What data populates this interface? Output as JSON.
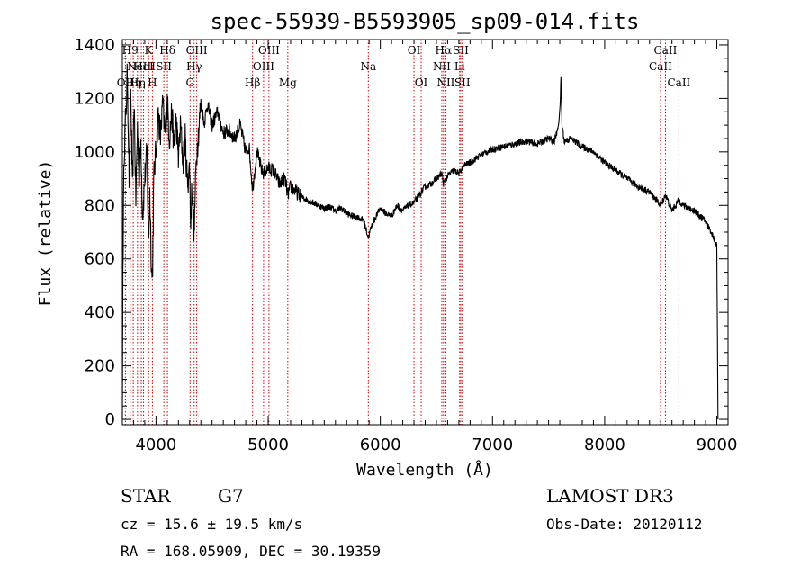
{
  "chart_data": {
    "type": "line",
    "title": "spec-55939-B5593905_sp09-014.fits",
    "xlabel": "Wavelength (Å)",
    "ylabel": "Flux (relative)",
    "xlim": [
      3700,
      9100
    ],
    "ylim": [
      -20,
      1420
    ],
    "xticks": [
      4000,
      5000,
      6000,
      7000,
      8000,
      9000
    ],
    "yticks": [
      0,
      200,
      400,
      600,
      800,
      1000,
      1200,
      1400
    ],
    "series": [
      {
        "name": "flux",
        "x": [
          3700,
          3705,
          3715,
          3730,
          3745,
          3760,
          3775,
          3790,
          3805,
          3820,
          3835,
          3850,
          3865,
          3880,
          3900,
          3920,
          3933,
          3945,
          3960,
          3968,
          3980,
          4000,
          4020,
          4040,
          4060,
          4080,
          4100,
          4120,
          4140,
          4160,
          4180,
          4200,
          4220,
          4240,
          4260,
          4280,
          4300,
          4310,
          4320,
          4340,
          4360,
          4380,
          4400,
          4430,
          4460,
          4500,
          4550,
          4600,
          4650,
          4700,
          4750,
          4800,
          4830,
          4861,
          4880,
          4900,
          4950,
          5000,
          5050,
          5100,
          5150,
          5175,
          5200,
          5250,
          5300,
          5350,
          5400,
          5450,
          5500,
          5550,
          5600,
          5650,
          5700,
          5750,
          5800,
          5850,
          5893,
          5920,
          5950,
          6000,
          6050,
          6100,
          6150,
          6200,
          6250,
          6300,
          6350,
          6400,
          6450,
          6500,
          6550,
          6563,
          6600,
          6650,
          6700,
          6750,
          6800,
          6900,
          7000,
          7100,
          7200,
          7300,
          7400,
          7500,
          7550,
          7580,
          7600,
          7610,
          7620,
          7640,
          7700,
          7800,
          7900,
          8000,
          8100,
          8200,
          8300,
          8400,
          8500,
          8542,
          8600,
          8662,
          8700,
          8750,
          8800,
          8850,
          8900,
          8950,
          9000,
          9010
        ],
        "values": [
          0,
          560,
          1000,
          1130,
          1300,
          900,
          1220,
          850,
          1200,
          820,
          1100,
          880,
          1050,
          760,
          900,
          1000,
          640,
          850,
          560,
          520,
          900,
          1010,
          1140,
          1060,
          1180,
          1060,
          1190,
          1050,
          1150,
          1020,
          1120,
          980,
          1100,
          960,
          1050,
          880,
          940,
          720,
          880,
          700,
          980,
          1080,
          1180,
          1110,
          1180,
          1100,
          1150,
          1070,
          1080,
          1050,
          1100,
          1000,
          1020,
          860,
          930,
          1000,
          920,
          940,
          930,
          880,
          900,
          840,
          870,
          850,
          830,
          820,
          810,
          800,
          790,
          795,
          780,
          790,
          770,
          760,
          755,
          745,
          680,
          720,
          750,
          790,
          770,
          760,
          800,
          780,
          800,
          810,
          840,
          870,
          880,
          900,
          920,
          880,
          910,
          930,
          920,
          950,
          960,
          990,
          1010,
          1020,
          1030,
          1040,
          1030,
          1050,
          1040,
          1080,
          1150,
          1270,
          1100,
          1040,
          1050,
          1020,
          1000,
          960,
          930,
          900,
          870,
          850,
          800,
          840,
          780,
          820,
          800,
          790,
          780,
          760,
          740,
          700,
          650,
          0
        ]
      }
    ],
    "lines": [
      {
        "wavelength": 3727,
        "label": "OII",
        "row": 2
      },
      {
        "wavelength": 3770,
        "label": "H9",
        "row": 0
      },
      {
        "wavelength": 3797,
        "label": "Hη",
        "row": 2
      },
      {
        "wavelength": 3835,
        "label": "Hη",
        "row": 2
      },
      {
        "wavelength": 3869,
        "label": "NeIII",
        "row": 1
      },
      {
        "wavelength": 3889,
        "label": "HeI",
        "row": 1
      },
      {
        "wavelength": 3934,
        "label": "K",
        "row": 0
      },
      {
        "wavelength": 3968,
        "label": "H",
        "row": 2
      },
      {
        "wavelength": 4070,
        "label": "SII",
        "row": 1
      },
      {
        "wavelength": 4102,
        "label": "Hδ",
        "row": 0
      },
      {
        "wavelength": 4304,
        "label": "G",
        "row": 2
      },
      {
        "wavelength": 4340,
        "label": "Hγ",
        "row": 1
      },
      {
        "wavelength": 4363,
        "label": "OIII",
        "row": 0
      },
      {
        "wavelength": 4861,
        "label": "Hβ",
        "row": 2
      },
      {
        "wavelength": 4959,
        "label": "OIII",
        "row": 1
      },
      {
        "wavelength": 5007,
        "label": "OIII",
        "row": 0
      },
      {
        "wavelength": 5175,
        "label": "Mg",
        "row": 2
      },
      {
        "wavelength": 5893,
        "label": "Na",
        "row": 1
      },
      {
        "wavelength": 6300,
        "label": "OI",
        "row": 0
      },
      {
        "wavelength": 6364,
        "label": "OI",
        "row": 2
      },
      {
        "wavelength": 6548,
        "label": "NII",
        "row": 1
      },
      {
        "wavelength": 6563,
        "label": "Hα",
        "row": 0
      },
      {
        "wavelength": 6584,
        "label": "NII",
        "row": 2
      },
      {
        "wavelength": 6707,
        "label": "Li",
        "row": 1
      },
      {
        "wavelength": 6717,
        "label": "SII",
        "row": 0
      },
      {
        "wavelength": 6731,
        "label": "SII",
        "row": 2
      },
      {
        "wavelength": 8498,
        "label": "CaII",
        "row": 1
      },
      {
        "wavelength": 8542,
        "label": "CaII",
        "row": 0
      },
      {
        "wavelength": 8662,
        "label": "CaII",
        "row": 2
      }
    ]
  },
  "info": {
    "class_label": "STAR",
    "subclass": "G7",
    "redshift_line": "cz = 15.6 ± 19.5 km/s",
    "coords_line": "RA = 168.05909, DEC =  30.19359",
    "survey": "LAMOST DR3",
    "obs_date": "Obs-Date: 20120112"
  }
}
